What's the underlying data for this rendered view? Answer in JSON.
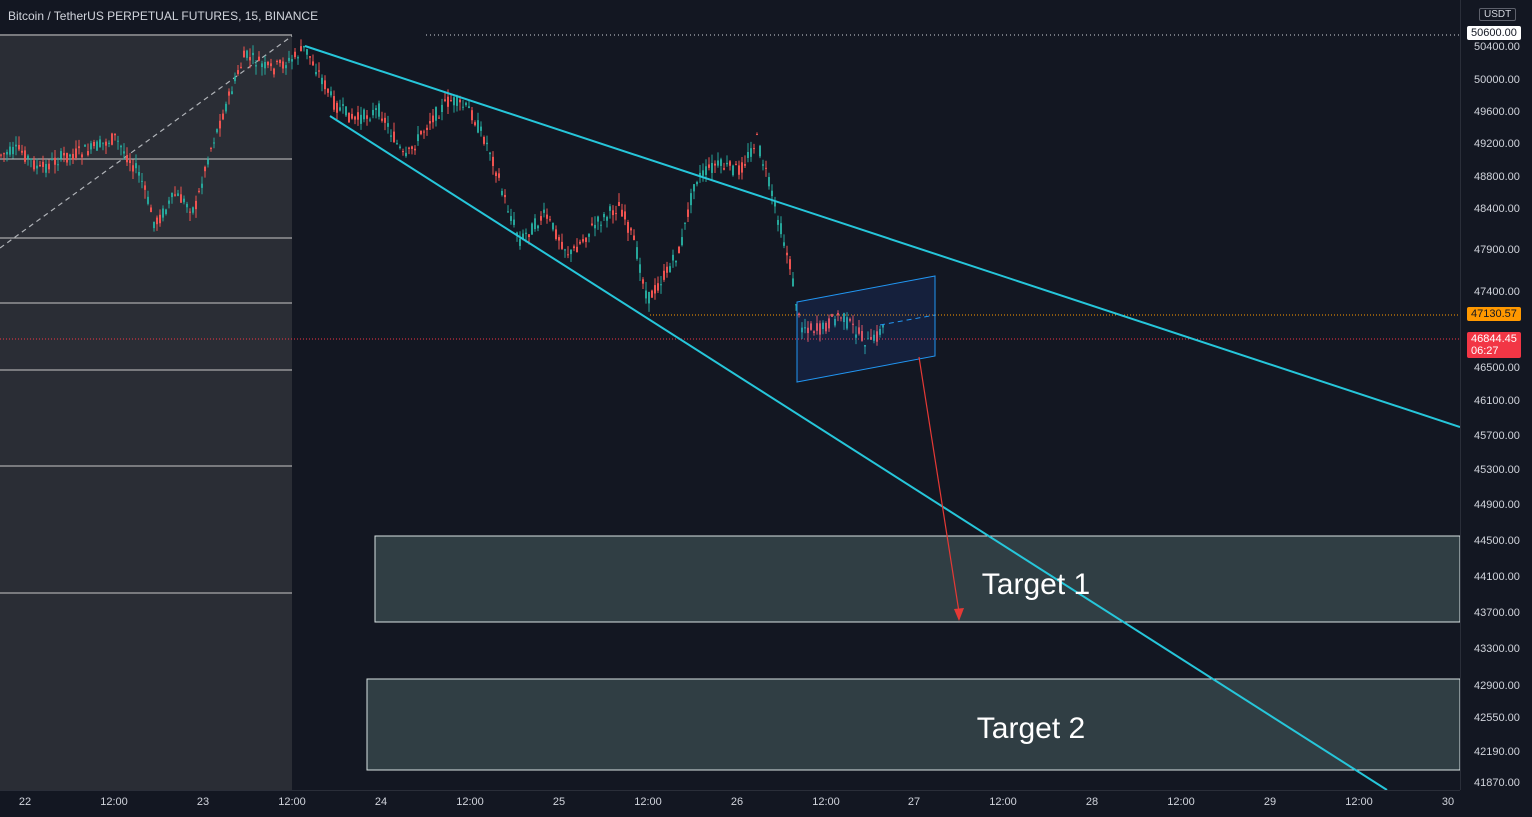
{
  "header": {
    "title": "Bitcoin / TetherUS PERPETUAL FUTURES, 15, BINANCE"
  },
  "price_axis": {
    "currency": "USDT",
    "ticks": [
      "50400.00",
      "50000.00",
      "49600.00",
      "49200.00",
      "48800.00",
      "48400.00",
      "47900.00",
      "47400.00",
      "46500.00",
      "46100.00",
      "45700.00",
      "45300.00",
      "44900.00",
      "44500.00",
      "44100.00",
      "43700.00",
      "43300.00",
      "42900.00",
      "42550.00",
      "42190.00",
      "41870.00"
    ],
    "line_label": "50600.00",
    "close_label": "47130.57",
    "last_price": "46844.45",
    "countdown": "06:27"
  },
  "time_axis": {
    "ticks": [
      "22",
      "12:00",
      "23",
      "12:00",
      "24",
      "12:00",
      "25",
      "12:00",
      "26",
      "12:00",
      "27",
      "12:00",
      "28",
      "12:00",
      "29",
      "12:00",
      "30"
    ]
  },
  "annotations": {
    "target1": "Target 1",
    "target2": "Target 2"
  },
  "colors": {
    "background": "#131722",
    "trendline": "#26c6da",
    "channel": "#2196f3",
    "arrow": "#e53935",
    "up_candle": "#26a69a",
    "down_candle": "#ef5350",
    "last_price_bg": "#f23645",
    "close_label_bg": "#ff9800"
  }
}
